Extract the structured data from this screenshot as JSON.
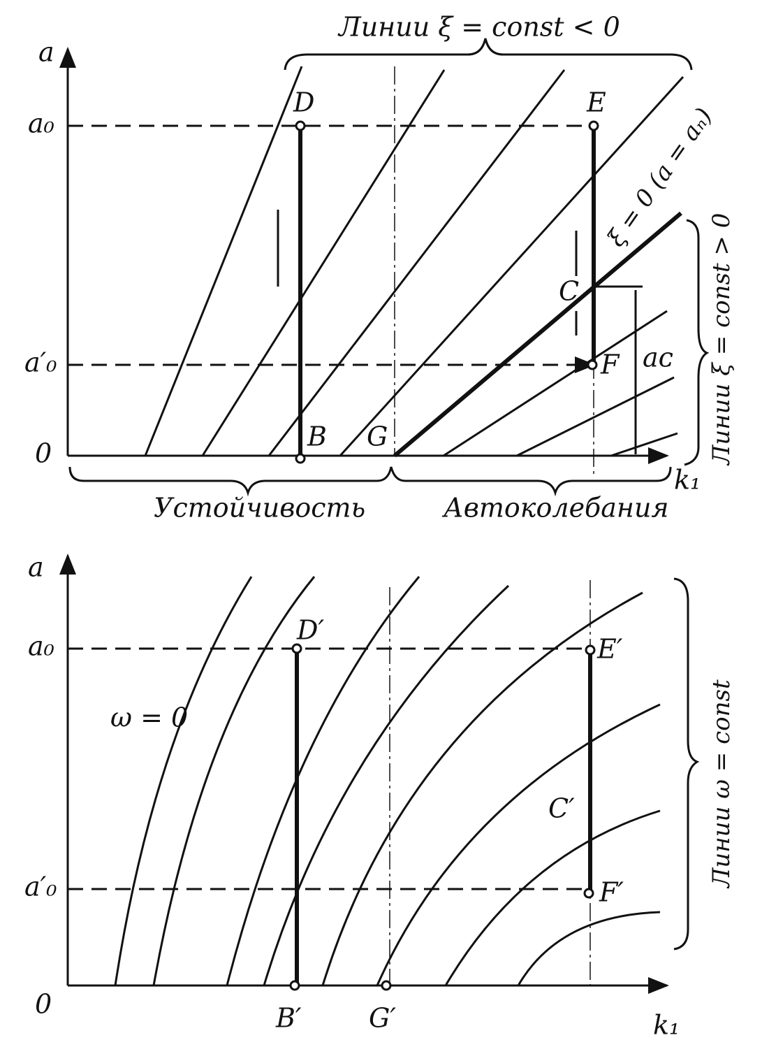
{
  "top": {
    "title": "Линии ξ = const < 0",
    "y_axis": "a",
    "a0": "a₀",
    "a0_prime": "a′₀",
    "origin": "0",
    "x_axis": "k₁",
    "points": {
      "D": "D",
      "E": "E",
      "C": "C",
      "F": "F",
      "B": "B",
      "G": "G"
    },
    "zero_line": "ξ = 0 (a = aₙ)",
    "right_label": "Линии ξ = const > 0",
    "ac": "aᴄ",
    "stability": "Устойчивость",
    "self_oscillation": "Автоколебания"
  },
  "bottom": {
    "y_axis": "a",
    "a0": "a₀",
    "a0_prime": "a′₀",
    "origin": "0",
    "x_axis": "k₁",
    "points": {
      "D": "D′",
      "E": "E′",
      "C": "C′",
      "F": "F′",
      "B": "B′",
      "G": "G′"
    },
    "omega_zero": "ω = 0",
    "right_label": "Линии ω = const"
  }
}
